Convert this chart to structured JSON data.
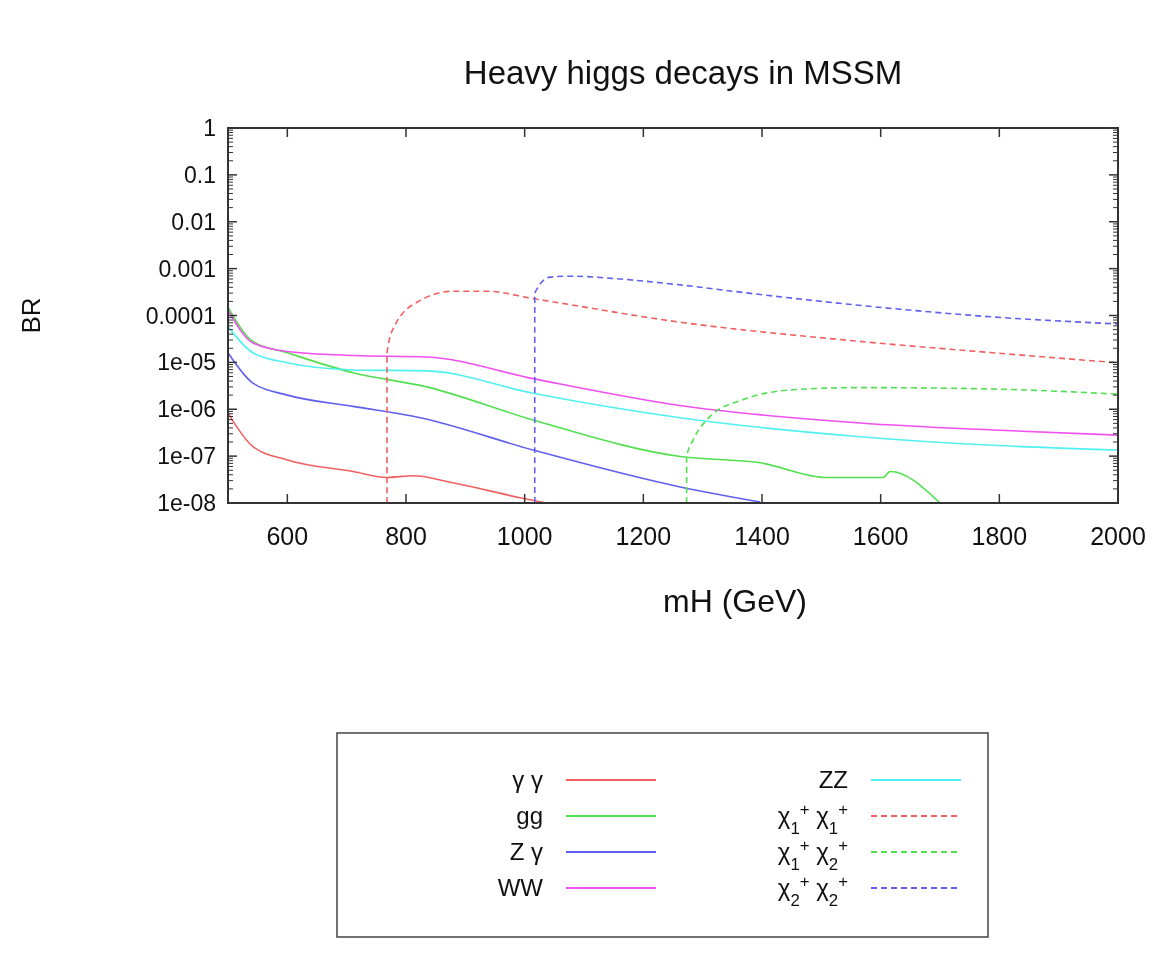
{
  "chart_data": {
    "type": "line",
    "title": "Heavy higgs decays in MSSM",
    "xlabel": "mH (GeV)",
    "ylabel": "BR",
    "log": "y",
    "xlim": [
      500,
      2000
    ],
    "xticks": [
      600,
      800,
      1000,
      1200,
      1400,
      1600,
      1800,
      2000
    ],
    "ylim": [
      1e-08,
      1
    ],
    "yticks": [
      1,
      0.1,
      0.01,
      0.001,
      0.0001,
      {
        "value": 1e-05,
        "label": "1e-05"
      },
      {
        "value": 1e-06,
        "label": "1e-06"
      },
      {
        "value": 1e-07,
        "label": "1e-07"
      },
      {
        "value": 1e-08,
        "label": "1e-08"
      }
    ],
    "grid": false,
    "legend": "bottom",
    "series": [
      {
        "name": "γ γ",
        "color": "#f06060",
        "line_style": "solid",
        "x": [
          500,
          542,
          600,
          711,
          768,
          812,
          879,
          992,
          1037
        ],
        "values": [
          8.3e-07,
          1.6e-07,
          8.3e-08,
          4.7e-08,
          3.5e-08,
          3.8e-08,
          2.7e-08,
          1.3e-08,
          1e-08
        ]
      },
      {
        "name": "gg",
        "color": "#50e050",
        "line_style": "solid",
        "x": [
          500,
          542,
          600,
          711,
          835,
          1014,
          1262,
          1397,
          1510,
          1604,
          1616,
          1700
        ],
        "values": [
          0.00015,
          2.8e-05,
          1.6e-05,
          6e-06,
          3e-06,
          5.9e-07,
          9.8e-08,
          7.2e-08,
          3.5e-08,
          3.5e-08,
          4.7e-08,
          1e-08
        ]
      },
      {
        "name": "Z γ",
        "color": "#6060f0",
        "line_style": "solid",
        "x": [
          500,
          542,
          600,
          711,
          824,
          1014,
          1262,
          1397
        ],
        "values": [
          1.6e-05,
          3.6e-06,
          2e-06,
          1.15e-06,
          6.6e-07,
          1.35e-07,
          2.2e-08,
          1.05e-08
        ]
      },
      {
        "name": "WW",
        "color": "#f050f0",
        "line_style": "solid",
        "x": [
          500,
          542,
          600,
          711,
          835,
          1014,
          1262,
          1565,
          1790,
          2000
        ],
        "values": [
          0.00013,
          2.6e-05,
          1.7e-05,
          1.4e-05,
          1.3e-05,
          4.5e-06,
          1.2e-06,
          5.1e-07,
          3.6e-07,
          2.8e-07
        ]
      },
      {
        "name": "ZZ",
        "color": "#50f0f0",
        "line_style": "solid",
        "x": [
          500,
          542,
          600,
          711,
          835,
          1014,
          1262,
          1565,
          1790,
          2000
        ],
        "values": [
          5.8e-05,
          1.6e-05,
          9.8e-06,
          6.9e-06,
          6.6e-06,
          2.2e-06,
          6.6e-07,
          2.6e-07,
          1.7e-07,
          1.35e-07
        ]
      },
      {
        "name": "χ$_{1}$$^{+}$ χ$_{1}$$^{+}$",
        "color": "#f06060",
        "line_style": "dashed",
        "x": [
          768,
          768,
          780,
          824,
          880,
          936,
          1014,
          1262,
          1565,
          1790,
          2000
        ],
        "values": [
          1e-08,
          1.6e-05,
          5.8e-05,
          0.00021,
          0.00033,
          0.00033,
          0.00023,
          7.2e-05,
          2.8e-05,
          1.6e-05,
          9.8e-06
        ]
      },
      {
        "name": "χ$_{1}$$^{+}$ χ$_{2}$$^{+}$",
        "color": "#50e050",
        "line_style": "dashed",
        "x": [
          1273,
          1273,
          1284,
          1312,
          1368,
          1452,
          1565,
          1790,
          2000
        ],
        "values": [
          1e-08,
          9.8e-08,
          2.2e-07,
          6.9e-07,
          1.6e-06,
          2.6e-06,
          2.9e-06,
          2.7e-06,
          2.1e-06
        ]
      },
      {
        "name": "χ$_{2}$$^{+}$ χ$_{2}$$^{+}$",
        "color": "#6060f0",
        "line_style": "dashed",
        "x": [
          1017,
          1017,
          1043,
          1077,
          1161,
          1262,
          1397,
          1622,
          1790,
          2000
        ],
        "values": [
          1e-08,
          0.0003,
          0.00066,
          0.00069,
          0.0006,
          0.00045,
          0.00028,
          0.00014,
          9.3e-05,
          6.6e-05
        ]
      }
    ]
  }
}
